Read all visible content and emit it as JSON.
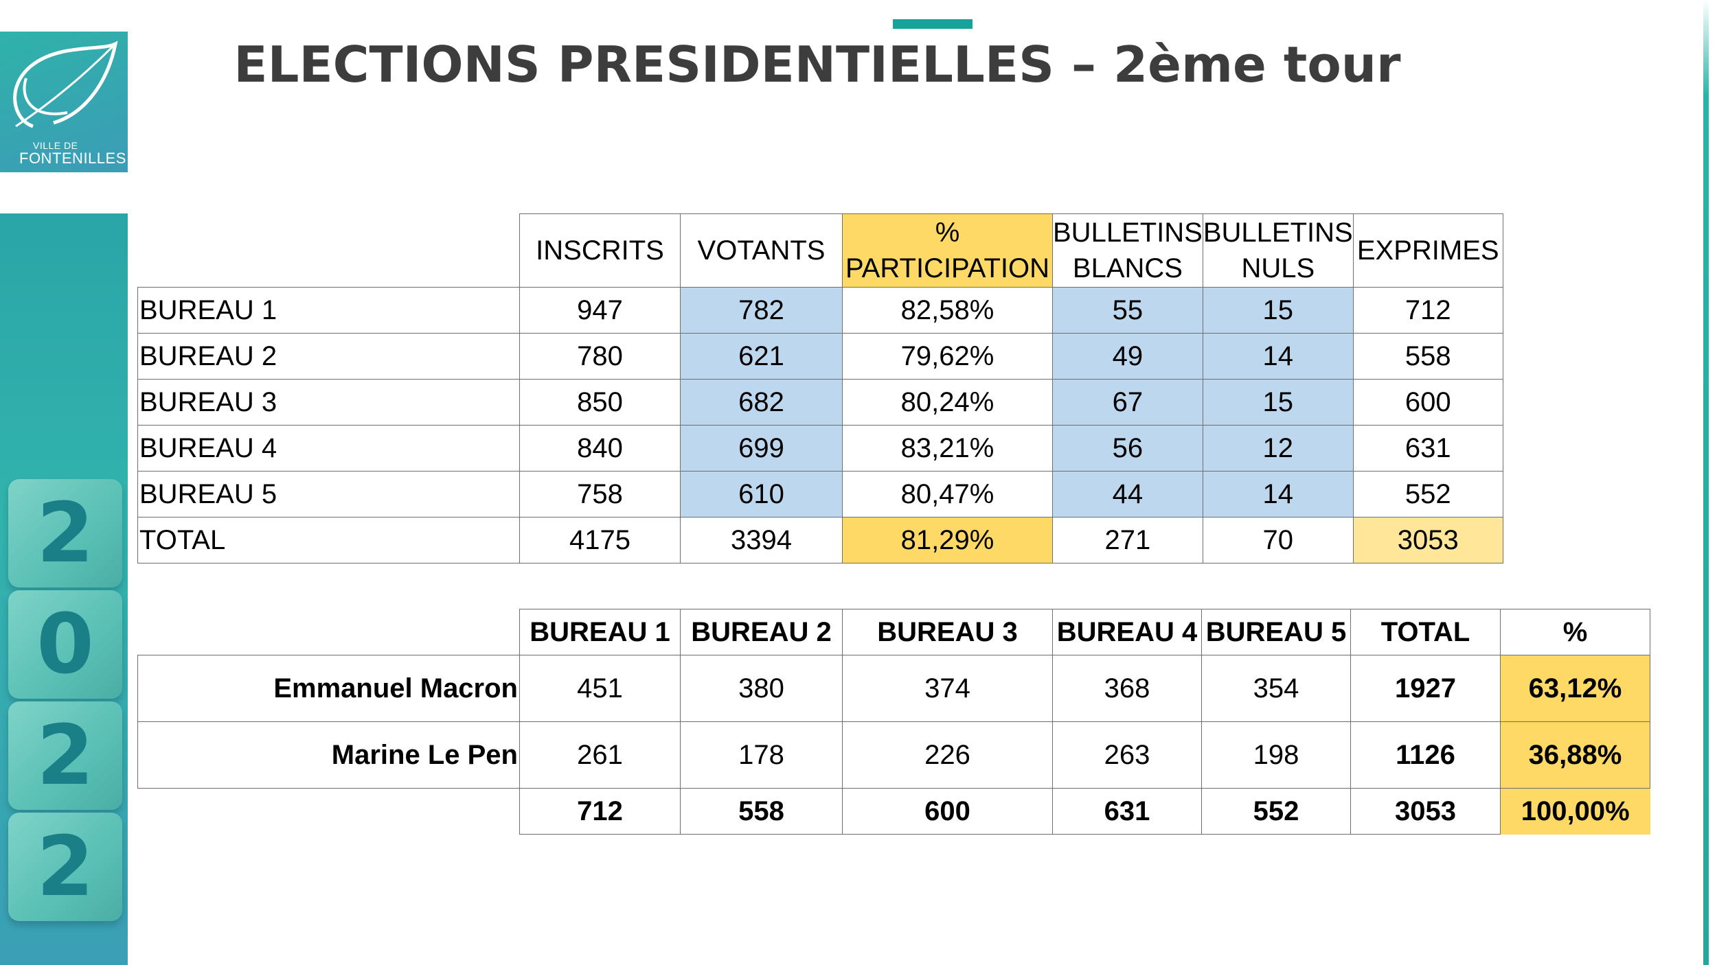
{
  "logo": {
    "line1": "VILLE DE",
    "line2": "FONTENILLES"
  },
  "year_digits": [
    "2",
    "0",
    "2",
    "2"
  ],
  "title": "ELECTIONS PRESIDENTIELLES – 2ème tour",
  "participation_table": {
    "headers": [
      "INSCRITS",
      "VOTANTS",
      "%",
      "PARTICIPATION",
      "BULLETINS",
      "BLANCS",
      "BULLETINS",
      "NULS",
      "EXPRIMES"
    ],
    "rows": [
      [
        "BUREAU 1",
        "947",
        "782",
        "82,58%",
        "55",
        "15",
        "712"
      ],
      [
        "BUREAU 2",
        "780",
        "621",
        "79,62%",
        "49",
        "14",
        "558"
      ],
      [
        "BUREAU 3",
        "850",
        "682",
        "80,24%",
        "67",
        "15",
        "600"
      ],
      [
        "BUREAU 4",
        "840",
        "699",
        "83,21%",
        "56",
        "12",
        "631"
      ],
      [
        "BUREAU 5",
        "758",
        "610",
        "80,47%",
        "44",
        "14",
        "552"
      ],
      [
        "TOTAL",
        "4175",
        "3394",
        "81,29%",
        "271",
        "70",
        "3053"
      ]
    ]
  },
  "results_table": {
    "headers": [
      "BUREAU 1",
      "BUREAU 2",
      "BUREAU 3",
      "BUREAU 4",
      "BUREAU 5",
      "TOTAL",
      "%"
    ],
    "rows": [
      [
        "Emmanuel Macron",
        "451",
        "380",
        "374",
        "368",
        "354",
        "1927",
        "63,12%"
      ],
      [
        "Marine Le Pen",
        "261",
        "178",
        "226",
        "263",
        "198",
        "1126",
        "36,88%"
      ]
    ],
    "footer": [
      "712",
      "558",
      "600",
      "631",
      "552",
      "3053",
      "100,00%"
    ]
  },
  "colors": {
    "accent": "#17a39a",
    "highlight_blue": "#bdd7ee",
    "highlight_gold": "#ffd966",
    "title": "#3d3d3d"
  }
}
